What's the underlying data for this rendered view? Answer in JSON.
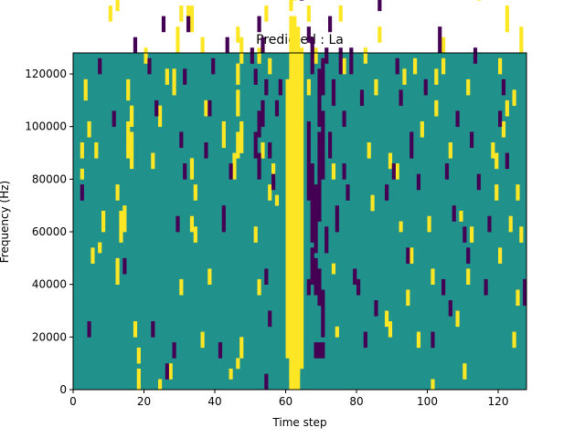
{
  "chart_data": {
    "type": "heatmap",
    "title": "Predicted : La",
    "xlabel": "Time step",
    "ylabel": "Frequency (Hz)",
    "xlim": [
      0,
      128
    ],
    "ylim": [
      0,
      128000
    ],
    "x_ticks": [
      0,
      20,
      40,
      60,
      80,
      100,
      120
    ],
    "x_tick_labels": [
      "0",
      "20",
      "40",
      "60",
      "80",
      "100",
      "120"
    ],
    "y_ticks": [
      0,
      20000,
      40000,
      60000,
      80000,
      100000,
      120000
    ],
    "y_tick_labels": [
      "0",
      "20000",
      "40000",
      "60000",
      "80000",
      "100000",
      "120000"
    ],
    "grid": false,
    "colormap": "viridis",
    "value_levels": [
      -1,
      0,
      1
    ],
    "colors": {
      "-1": "#440154",
      "0": "#21918c",
      "1": "#fde725"
    },
    "background_value": 0,
    "n_cols": 128,
    "n_rows": 64,
    "row_height_hz": 2000,
    "cells_high": [
      [
        61,
        0,
        4
      ],
      [
        62,
        0,
        4
      ],
      [
        63,
        0,
        4
      ],
      [
        60,
        6,
        58
      ],
      [
        61,
        2,
        70
      ],
      [
        62,
        2,
        70
      ],
      [
        63,
        3,
        68
      ],
      [
        64,
        4,
        64
      ],
      [
        61,
        72,
        74
      ],
      [
        62,
        74,
        78
      ],
      [
        63,
        76,
        78
      ],
      [
        18,
        0,
        3
      ],
      [
        18,
        5,
        7
      ],
      [
        17,
        10,
        12
      ],
      [
        13,
        28,
        33
      ],
      [
        14,
        30,
        34
      ],
      [
        12,
        20,
        24
      ],
      [
        15,
        44,
        50
      ],
      [
        16,
        42,
        48
      ],
      [
        15,
        55,
        58
      ],
      [
        16,
        50,
        53
      ],
      [
        44,
        2,
        3
      ],
      [
        46,
        4,
        5
      ],
      [
        47,
        6,
        9
      ],
      [
        45,
        40,
        44
      ],
      [
        46,
        44,
        48
      ],
      [
        47,
        45,
        50
      ],
      [
        46,
        52,
        56
      ],
      [
        46,
        58,
        61
      ],
      [
        47,
        62,
        66
      ],
      [
        46,
        66,
        68
      ],
      [
        42,
        46,
        50
      ],
      [
        42,
        88,
        92
      ],
      [
        38,
        94,
        96
      ],
      [
        31,
        94,
        96
      ],
      [
        33,
        68,
        72
      ],
      [
        32,
        70,
        72
      ],
      [
        2,
        44,
        46
      ],
      [
        3,
        55,
        58
      ],
      [
        2,
        40,
        41
      ],
      [
        8,
        30,
        33
      ],
      [
        8,
        82,
        84
      ],
      [
        7,
        26,
        27
      ],
      [
        10,
        70,
        72
      ],
      [
        12,
        36,
        38
      ],
      [
        24,
        50,
        53
      ],
      [
        28,
        56,
        60
      ],
      [
        29,
        64,
        68
      ],
      [
        30,
        70,
        72
      ],
      [
        33,
        40,
        43
      ],
      [
        34,
        36,
        38
      ],
      [
        37,
        52,
        54
      ],
      [
        36,
        64,
        66
      ],
      [
        52,
        18,
        20
      ],
      [
        51,
        28,
        30
      ],
      [
        53,
        44,
        46
      ],
      [
        56,
        40,
        42
      ],
      [
        55,
        60,
        62
      ],
      [
        57,
        35,
        36
      ],
      [
        54,
        70,
        72
      ],
      [
        52,
        62,
        64
      ],
      [
        66,
        56,
        58
      ],
      [
        68,
        62,
        64
      ],
      [
        66,
        70,
        72
      ],
      [
        67,
        78,
        80
      ],
      [
        69,
        88,
        90
      ],
      [
        68,
        100,
        102
      ],
      [
        67,
        108,
        110
      ],
      [
        66,
        120,
        122
      ],
      [
        73,
        22,
        23
      ],
      [
        74,
        10,
        11
      ],
      [
        73,
        40,
        42
      ],
      [
        76,
        60,
        62
      ],
      [
        75,
        70,
        72
      ],
      [
        76,
        80,
        82
      ],
      [
        85,
        56,
        58
      ],
      [
        86,
        66,
        68
      ],
      [
        83,
        44,
        46
      ],
      [
        84,
        34,
        36
      ],
      [
        89,
        10,
        12
      ],
      [
        86,
        90,
        92
      ],
      [
        93,
        58,
        60
      ],
      [
        92,
        30,
        31
      ],
      [
        94,
        16,
        18
      ],
      [
        95,
        24,
        26
      ],
      [
        91,
        40,
        42
      ],
      [
        100,
        30,
        32
      ],
      [
        101,
        20,
        22
      ],
      [
        102,
        52,
        54
      ],
      [
        104,
        60,
        62
      ],
      [
        104,
        64,
        66
      ],
      [
        106,
        44,
        46
      ],
      [
        108,
        12,
        14
      ],
      [
        110,
        2,
        4
      ],
      [
        109,
        32,
        33
      ],
      [
        111,
        56,
        58
      ],
      [
        112,
        28,
        30
      ],
      [
        111,
        20,
        22
      ],
      [
        119,
        42,
        44
      ],
      [
        120,
        24,
        26
      ],
      [
        119,
        36,
        38
      ],
      [
        121,
        86,
        88
      ],
      [
        120,
        60,
        62
      ],
      [
        121,
        48,
        50
      ],
      [
        122,
        68,
        72
      ],
      [
        122,
        52,
        54
      ],
      [
        124,
        8,
        10
      ],
      [
        125,
        16,
        18
      ],
      [
        124,
        54,
        56
      ],
      [
        126,
        64,
        68
      ],
      [
        127,
        78,
        80
      ],
      [
        125,
        36,
        38
      ],
      [
        101,
        0,
        1
      ],
      [
        24,
        0,
        1
      ],
      [
        30,
        18,
        20
      ],
      [
        27,
        2,
        4
      ],
      [
        36,
        8,
        10
      ],
      [
        96,
        60,
        62
      ],
      [
        5,
        24,
        26
      ],
      [
        6,
        44,
        46
      ],
      [
        4,
        48,
        50
      ],
      [
        12,
        72,
        74
      ],
      [
        11,
        86,
        88
      ],
      [
        20,
        62,
        64
      ],
      [
        22,
        42,
        44
      ],
      [
        26,
        58,
        60
      ],
      [
        33,
        30,
        32
      ],
      [
        34,
        28,
        30
      ],
      [
        38,
        20,
        22
      ],
      [
        40,
        88,
        90
      ],
      [
        41,
        92,
        94
      ],
      [
        50,
        100,
        102
      ],
      [
        55,
        36,
        38
      ],
      [
        64,
        120,
        122
      ],
      [
        66,
        110,
        112
      ],
      [
        70,
        100,
        102
      ],
      [
        82,
        62,
        64
      ],
      [
        88,
        12,
        14
      ],
      [
        89,
        42,
        44
      ],
      [
        93,
        112,
        114
      ],
      [
        97,
        8,
        10
      ],
      [
        98,
        48,
        50
      ],
      [
        102,
        58,
        60
      ],
      [
        112,
        90,
        92
      ],
      [
        114,
        74,
        76
      ],
      [
        118,
        44,
        46
      ],
      [
        123,
        30,
        32
      ],
      [
        126,
        28,
        30
      ]
    ],
    "cells_low": [
      [
        68,
        6,
        8
      ],
      [
        69,
        6,
        8
      ],
      [
        70,
        6,
        8
      ],
      [
        70,
        10,
        18
      ],
      [
        69,
        16,
        22
      ],
      [
        68,
        18,
        24
      ],
      [
        67,
        20,
        26
      ],
      [
        66,
        18,
        20
      ],
      [
        68,
        26,
        38
      ],
      [
        67,
        28,
        42
      ],
      [
        69,
        32,
        48
      ],
      [
        66,
        36,
        50
      ],
      [
        70,
        40,
        52
      ],
      [
        69,
        50,
        60
      ],
      [
        70,
        56,
        62
      ],
      [
        67,
        60,
        66
      ],
      [
        71,
        26,
        30
      ],
      [
        72,
        44,
        48
      ],
      [
        73,
        54,
        58
      ],
      [
        74,
        30,
        34
      ],
      [
        75,
        60,
        64
      ],
      [
        74,
        78,
        80
      ],
      [
        76,
        40,
        42
      ],
      [
        77,
        36,
        38
      ],
      [
        75,
        90,
        92
      ],
      [
        74,
        116,
        118
      ],
      [
        76,
        100,
        102
      ],
      [
        77,
        82,
        84
      ],
      [
        51,
        44,
        48
      ],
      [
        52,
        40,
        44
      ],
      [
        52,
        48,
        52
      ],
      [
        53,
        50,
        54
      ],
      [
        50,
        62,
        64
      ],
      [
        51,
        58,
        60
      ],
      [
        54,
        20,
        22
      ],
      [
        55,
        12,
        14
      ],
      [
        56,
        38,
        40
      ],
      [
        55,
        44,
        46
      ],
      [
        57,
        52,
        54
      ],
      [
        58,
        56,
        58
      ],
      [
        54,
        0,
        2
      ],
      [
        29,
        30,
        32
      ],
      [
        30,
        46,
        48
      ],
      [
        31,
        58,
        60
      ],
      [
        32,
        68,
        70
      ],
      [
        28,
        6,
        8
      ],
      [
        26,
        2,
        4
      ],
      [
        22,
        10,
        12
      ],
      [
        37,
        44,
        46
      ],
      [
        38,
        52,
        54
      ],
      [
        39,
        60,
        62
      ],
      [
        41,
        6,
        8
      ],
      [
        42,
        30,
        34
      ],
      [
        43,
        64,
        66
      ],
      [
        44,
        40,
        42
      ],
      [
        2,
        36,
        38
      ],
      [
        3,
        96,
        98
      ],
      [
        4,
        10,
        12
      ],
      [
        7,
        60,
        62
      ],
      [
        9,
        76,
        78
      ],
      [
        11,
        50,
        52
      ],
      [
        14,
        22,
        24
      ],
      [
        16,
        98,
        100
      ],
      [
        17,
        64,
        66
      ],
      [
        21,
        60,
        62
      ],
      [
        23,
        52,
        54
      ],
      [
        24,
        80,
        82
      ],
      [
        25,
        68,
        70
      ],
      [
        29,
        100,
        102
      ],
      [
        31,
        40,
        42
      ],
      [
        47,
        90,
        92
      ],
      [
        48,
        100,
        102
      ],
      [
        49,
        80,
        82
      ],
      [
        50,
        120,
        122
      ],
      [
        51,
        108,
        110
      ],
      [
        52,
        68,
        70
      ],
      [
        53,
        64,
        66
      ],
      [
        54,
        56,
        58
      ],
      [
        57,
        98,
        100
      ],
      [
        60,
        118,
        120
      ],
      [
        61,
        110,
        112
      ],
      [
        64,
        74,
        76
      ],
      [
        66,
        66,
        68
      ],
      [
        71,
        62,
        64
      ],
      [
        72,
        68,
        70
      ],
      [
        76,
        50,
        52
      ],
      [
        78,
        60,
        64
      ],
      [
        79,
        20,
        22
      ],
      [
        80,
        18,
        20
      ],
      [
        81,
        54,
        56
      ],
      [
        82,
        8,
        10
      ],
      [
        85,
        14,
        16
      ],
      [
        86,
        72,
        74
      ],
      [
        88,
        36,
        38
      ],
      [
        89,
        88,
        90
      ],
      [
        90,
        40,
        42
      ],
      [
        91,
        60,
        62
      ],
      [
        92,
        54,
        56
      ],
      [
        94,
        24,
        26
      ],
      [
        95,
        44,
        48
      ],
      [
        96,
        102,
        104
      ],
      [
        97,
        38,
        40
      ],
      [
        99,
        56,
        58
      ],
      [
        101,
        8,
        10
      ],
      [
        103,
        64,
        68
      ],
      [
        104,
        18,
        20
      ],
      [
        105,
        40,
        42
      ],
      [
        106,
        14,
        16
      ],
      [
        107,
        32,
        34
      ],
      [
        108,
        50,
        52
      ],
      [
        110,
        28,
        30
      ],
      [
        111,
        24,
        26
      ],
      [
        112,
        46,
        48
      ],
      [
        113,
        62,
        64
      ],
      [
        114,
        38,
        40
      ],
      [
        116,
        18,
        20
      ],
      [
        117,
        30,
        32
      ],
      [
        119,
        110,
        112
      ],
      [
        120,
        50,
        52
      ],
      [
        121,
        56,
        58
      ],
      [
        122,
        42,
        44
      ],
      [
        123,
        96,
        98
      ],
      [
        124,
        100,
        102
      ],
      [
        125,
        116,
        118
      ],
      [
        127,
        16,
        20
      ]
    ]
  }
}
